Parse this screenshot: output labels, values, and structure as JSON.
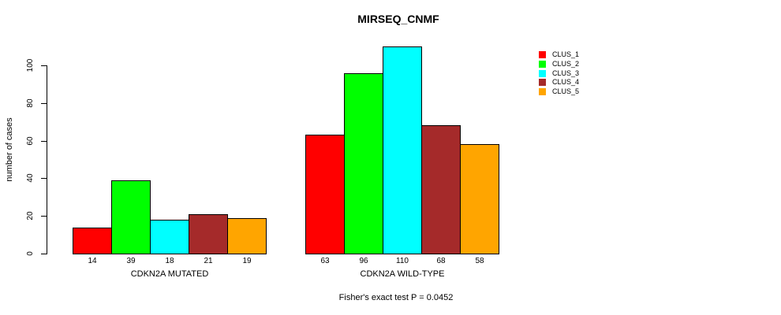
{
  "chart_data": {
    "type": "bar",
    "title": "MIRSEQ_CNMF",
    "ylabel": "number of cases",
    "xlabel": "",
    "y_ticks": [
      0,
      20,
      40,
      60,
      80,
      100
    ],
    "ylim": [
      0,
      110
    ],
    "grid": false,
    "legend_position": "right",
    "categories": [
      "CDKN2A MUTATED",
      "CDKN2A WILD-TYPE"
    ],
    "series": [
      {
        "name": "CLUS_1",
        "color": "#FF0000",
        "values": [
          14,
          63
        ]
      },
      {
        "name": "CLUS_2",
        "color": "#00FF00",
        "values": [
          39,
          96
        ]
      },
      {
        "name": "CLUS_3",
        "color": "#00FFFF",
        "values": [
          18,
          110
        ]
      },
      {
        "name": "CLUS_4",
        "color": "#A52A2A",
        "values": [
          21,
          68
        ]
      },
      {
        "name": "CLUS_5",
        "color": "#FFA500",
        "values": [
          19,
          58
        ]
      }
    ],
    "groups": [
      {
        "label": "CDKN2A MUTATED",
        "values": [
          14,
          39,
          18,
          21,
          19
        ]
      },
      {
        "label": "CDKN2A WILD-TYPE",
        "values": [
          63,
          96,
          110,
          68,
          58
        ]
      }
    ],
    "bar_value_labels": true,
    "footnote": "Fisher's exact test P = 0.0452",
    "colors": {
      "bar_border": "#000000",
      "axis": "#000000",
      "text": "#000000",
      "background": "#FFFFFF"
    }
  },
  "legend": {
    "items": [
      {
        "label": "CLUS_1",
        "color": "#FF0000"
      },
      {
        "label": "CLUS_2",
        "color": "#00FF00"
      },
      {
        "label": "CLUS_3",
        "color": "#00FFFF"
      },
      {
        "label": "CLUS_4",
        "color": "#A52A2A"
      },
      {
        "label": "CLUS_5",
        "color": "#FFA500"
      }
    ]
  }
}
